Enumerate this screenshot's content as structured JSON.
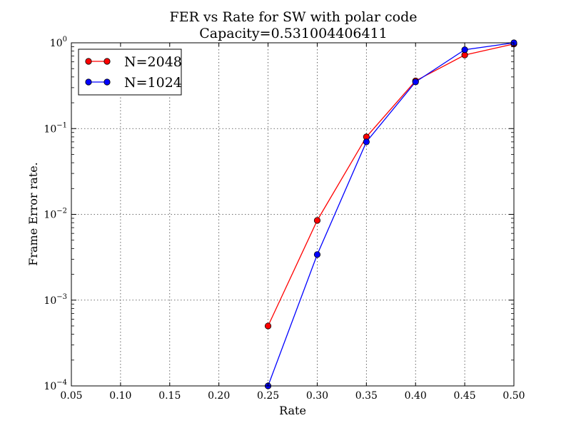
{
  "chart_data": {
    "type": "line",
    "title": "FER vs Rate for SW with polar code",
    "subtitle": "Capacity=0.531004406411",
    "xlabel": "Rate",
    "ylabel": "Frame Error rate.",
    "xlim": [
      0.05,
      0.5
    ],
    "ylim": [
      0.0001,
      1
    ],
    "yscale": "log",
    "grid": true,
    "legend_position": "top-left",
    "x_ticks": [
      "0.05",
      "0.10",
      "0.15",
      "0.20",
      "0.25",
      "0.30",
      "0.35",
      "0.40",
      "0.45",
      "0.50"
    ],
    "y_ticks": [
      {
        "base": "10",
        "exp": "0"
      },
      {
        "base": "10",
        "exp": "−1"
      },
      {
        "base": "10",
        "exp": "−2"
      },
      {
        "base": "10",
        "exp": "−3"
      },
      {
        "base": "10",
        "exp": "−4"
      }
    ],
    "series": [
      {
        "name": "N=2048",
        "color": "#ff0000",
        "x": [
          0.25,
          0.3,
          0.35,
          0.4,
          0.45,
          0.5
        ],
        "y": [
          0.0005,
          0.0085,
          0.08,
          0.36,
          0.72,
          0.97
        ]
      },
      {
        "name": "N=1024",
        "color": "#0000ff",
        "x": [
          0.25,
          0.3,
          0.35,
          0.4,
          0.45,
          0.5
        ],
        "y": [
          0.0001,
          0.0034,
          0.07,
          0.35,
          0.83,
          1.0
        ]
      }
    ]
  }
}
